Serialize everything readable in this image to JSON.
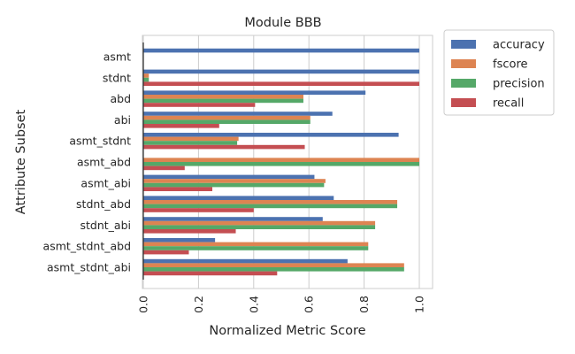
{
  "chart_data": {
    "type": "bar",
    "orientation": "horizontal",
    "title": "Module BBB",
    "xlabel": "Normalized Metric Score",
    "ylabel": "Attribute Subset",
    "xlim": [
      0,
      1.05
    ],
    "xticks": [
      "0.0",
      "0.2",
      "0.4",
      "0.6",
      "0.8",
      "1.0"
    ],
    "grid": true,
    "legend_position": "outside-top-right",
    "categories": [
      "asmt",
      "stdnt",
      "abd",
      "abi",
      "asmt_stdnt",
      "asmt_abd",
      "asmt_abi",
      "stdnt_abd",
      "stdnt_abi",
      "asmt_stdnt_abd",
      "asmt_stdnt_abi"
    ],
    "series": [
      {
        "name": "accuracy",
        "color": "#4c72b0",
        "values": [
          1.0,
          1.0,
          0.805,
          0.685,
          0.925,
          0.0,
          0.62,
          0.69,
          0.65,
          0.26,
          0.74
        ]
      },
      {
        "name": "fscore",
        "color": "#dd8452",
        "values": [
          0.0,
          0.02,
          0.58,
          0.605,
          0.345,
          1.0,
          0.66,
          0.92,
          0.84,
          0.815,
          0.945
        ]
      },
      {
        "name": "precision",
        "color": "#55a868",
        "values": [
          0.0,
          0.02,
          0.58,
          0.605,
          0.34,
          1.0,
          0.655,
          0.92,
          0.84,
          0.815,
          0.945
        ]
      },
      {
        "name": "recall",
        "color": "#c44e52",
        "values": [
          0.0,
          1.0,
          0.405,
          0.275,
          0.585,
          0.15,
          0.25,
          0.4,
          0.335,
          0.165,
          0.485
        ]
      }
    ]
  }
}
